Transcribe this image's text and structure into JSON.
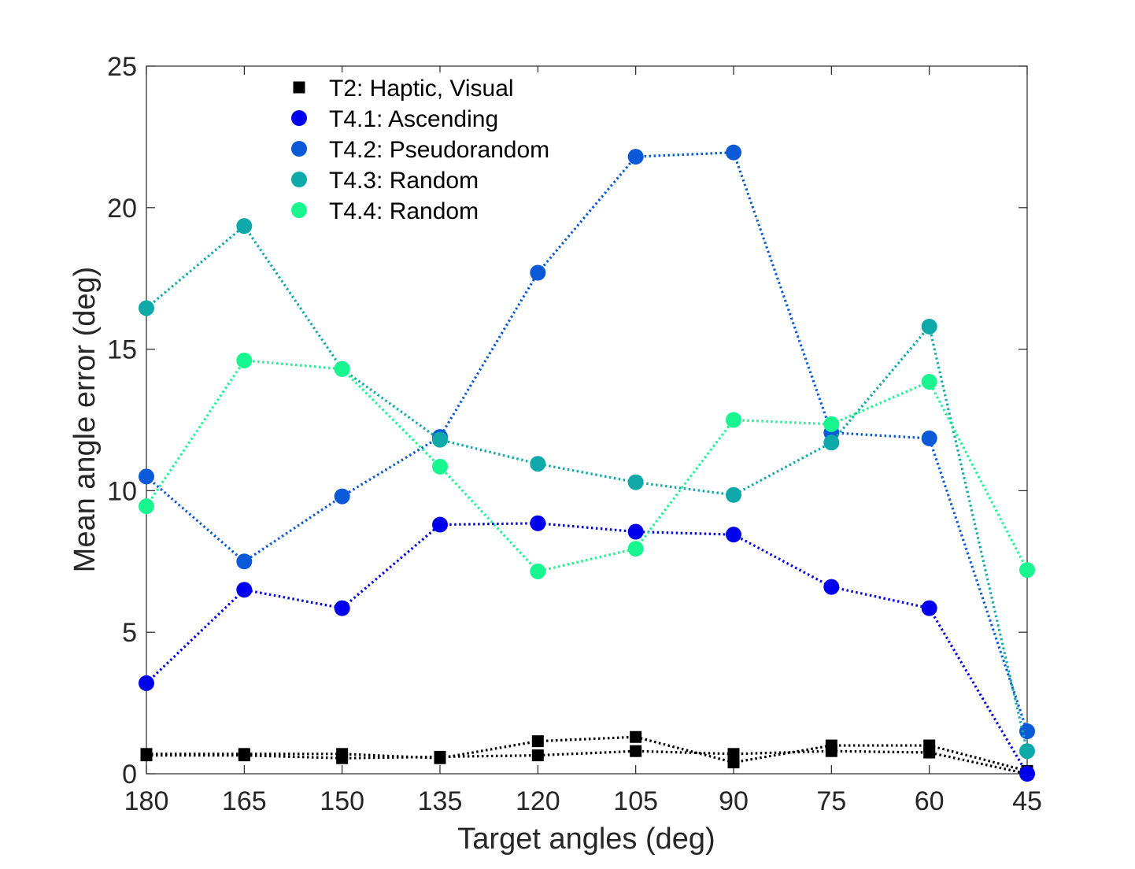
{
  "chart_data": {
    "type": "line",
    "xlabel": "Target angles (deg)",
    "ylabel": "Mean angle error (deg)",
    "x": [
      180,
      165,
      150,
      135,
      120,
      105,
      90,
      75,
      60,
      45
    ],
    "x_reversed": true,
    "ylim": [
      0,
      25
    ],
    "yticks": [
      0,
      5,
      10,
      15,
      20,
      25
    ],
    "grid": false,
    "legend_position": "top-left inside plot",
    "line_style": "dotted",
    "series": [
      {
        "name": "T2: Haptic, Visual",
        "marker": "square",
        "color": "#000000",
        "values": [
          0.7,
          0.7,
          0.7,
          0.55,
          1.15,
          1.3,
          0.4,
          1.0,
          1.0,
          0.1
        ]
      },
      {
        "name": "",
        "marker": "square",
        "color": "#000000",
        "values": [
          0.65,
          0.65,
          0.55,
          0.6,
          0.65,
          0.8,
          0.7,
          0.8,
          0.75,
          0.0
        ]
      },
      {
        "name": "T4.1: Ascending",
        "marker": "circle",
        "color": "#0000ef",
        "values": [
          3.2,
          6.5,
          5.85,
          8.8,
          8.85,
          8.55,
          8.45,
          6.6,
          5.85,
          0.0
        ]
      },
      {
        "name": "T4.2: Pseudorandom",
        "marker": "circle",
        "color": "#0a5ad8",
        "values": [
          10.5,
          7.5,
          9.8,
          11.9,
          17.7,
          21.8,
          21.95,
          12.05,
          11.85,
          1.5
        ]
      },
      {
        "name": "T4.3: Random",
        "marker": "circle",
        "color": "#10a9a9",
        "values": [
          16.45,
          19.35,
          14.3,
          11.8,
          10.95,
          10.3,
          9.85,
          11.7,
          15.8,
          0.8
        ]
      },
      {
        "name": "T4.4: Random",
        "marker": "circle",
        "color": "#18f68f",
        "values": [
          9.45,
          14.6,
          14.3,
          10.85,
          7.15,
          7.95,
          12.5,
          12.35,
          13.85,
          7.2
        ]
      }
    ]
  }
}
